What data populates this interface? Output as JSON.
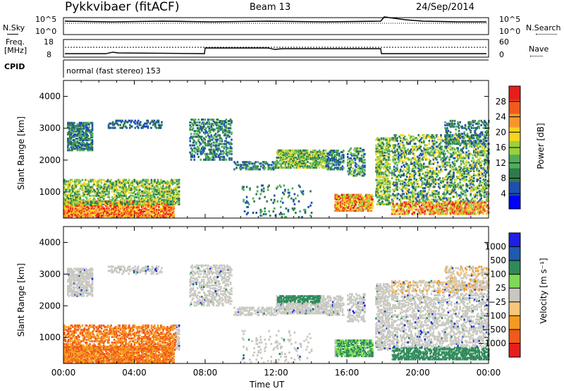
{
  "header": {
    "station": "Pykkvibaer (fitACF)",
    "beam": "Beam 13",
    "date": "24/Sep/2014"
  },
  "noise_panel": {
    "left_label": "N.Sky",
    "left_ticks": [
      "10^5",
      "10^0"
    ],
    "right_label": "N.Search",
    "right_ticks": [
      "10^5",
      "10^0"
    ]
  },
  "freq_panel": {
    "left_label_1": "Freq.",
    "left_label_2": "[MHz]",
    "left_ticks": [
      "18",
      "8"
    ],
    "right_label": "Nave",
    "right_ticks": [
      "60",
      "0"
    ]
  },
  "cpid": {
    "label": "CPID",
    "value": "normal (fast stereo) 153"
  },
  "colors": {
    "power_scale": [
      "#0000ff",
      "#1d4fae",
      "#2f7a4a",
      "#4fae5a",
      "#9bd13a",
      "#f7d41e",
      "#f7962b",
      "#f25a1e",
      "#e61e1e"
    ],
    "velocity_scale": [
      "#1e1ee6",
      "#1e5aae",
      "#2f8a5a",
      "#7ed957",
      "#c8c8c0",
      "#f5c77a",
      "#f59a1e",
      "#f05a1a",
      "#e61e1e"
    ],
    "ground_scatter": "#c8c8c0"
  },
  "chart_data": [
    {
      "type": "heatmap",
      "quantity": "power",
      "ylabel": "Slant Range [km]",
      "ylim": [
        180,
        4500
      ],
      "yticks": [
        1000,
        2000,
        3000,
        4000
      ],
      "xlim_hours": [
        0,
        24
      ],
      "colorbar": {
        "label": "Power [dB]",
        "ticks": [
          4,
          8,
          12,
          16,
          20,
          24,
          28
        ],
        "range": [
          0,
          32
        ]
      }
    },
    {
      "type": "heatmap",
      "quantity": "velocity",
      "ylabel": "Slant Range [km]",
      "ylim": [
        180,
        4500
      ],
      "yticks": [
        1000,
        2000,
        3000,
        4000
      ],
      "xlim_hours": [
        0,
        24
      ],
      "colorbar": {
        "label": "Velocity [m s⁻¹]",
        "ticks": [
          "1000",
          "500",
          "100",
          "25",
          "−25",
          "−100",
          "−500",
          "−1000"
        ]
      }
    }
  ],
  "x_axis": {
    "label": "Time UT",
    "ticks": [
      "00:00",
      "04:00",
      "08:00",
      "12:00",
      "16:00",
      "20:00",
      "00:00"
    ]
  }
}
